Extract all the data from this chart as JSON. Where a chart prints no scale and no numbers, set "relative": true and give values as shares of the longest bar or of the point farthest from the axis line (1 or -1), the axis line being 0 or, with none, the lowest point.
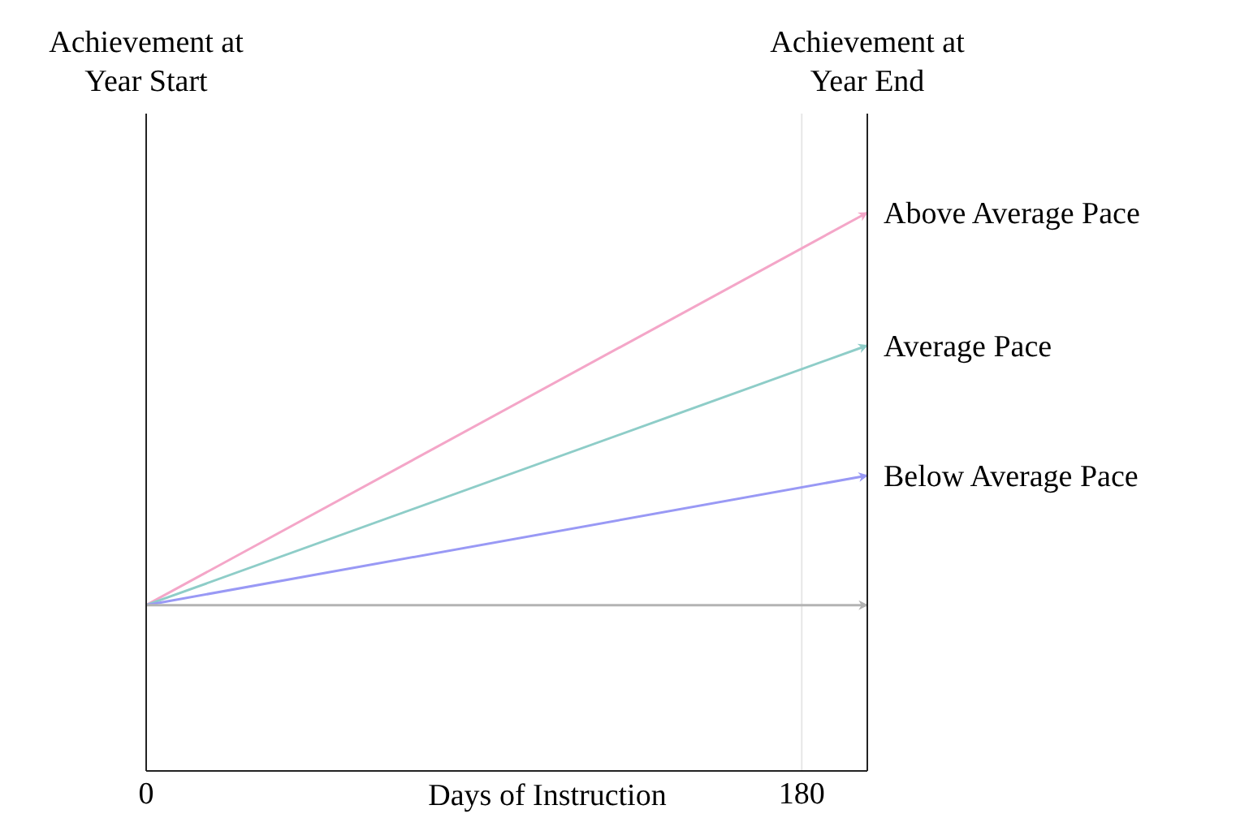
{
  "chart_data": {
    "type": "line",
    "xlabel": "Days of Instruction",
    "x": [
      0,
      198
    ],
    "xlim": [
      0,
      198
    ],
    "xticks": [
      0,
      180
    ],
    "relative": true,
    "grid": "x",
    "marker": "none",
    "line_style": "solid",
    "annotations": [
      "Achievement at Year Start",
      "Achievement at Year End"
    ],
    "series": [
      {
        "name": "Above Average Pace",
        "color": "#f4a6c8",
        "values": [
          0.297,
          1
        ]
      },
      {
        "name": "Average Pace",
        "color": "#8ecdc8",
        "values": [
          0.297,
          0.762
        ]
      },
      {
        "name": "Below Average Pace",
        "color": "#9999f5",
        "values": [
          0.297,
          0.529
        ]
      },
      {
        "color": "#b3b3b3",
        "values": [
          0.297,
          0.297
        ]
      }
    ]
  }
}
